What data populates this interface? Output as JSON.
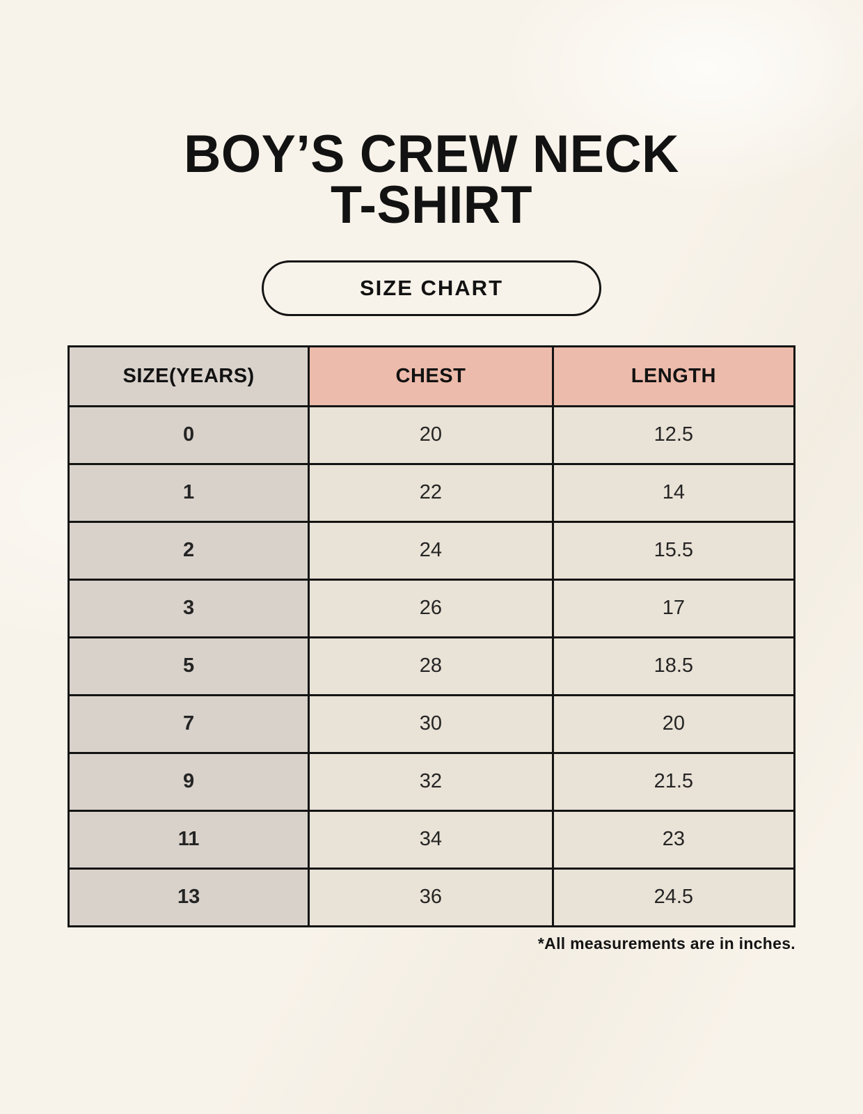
{
  "page": {
    "title_line1": "BOY’S CREW NECK",
    "title_line2": "T-SHIRT",
    "badge_label": "SIZE CHART",
    "footnote": "*All measurements are in inches."
  },
  "colors": {
    "background": "#f8f3ea",
    "header_accent_pink": "#edbbab",
    "size_column_taupe": "#d9d2cb",
    "value_cell_cream": "#e9e2d6",
    "border_black": "#141414",
    "text": "#1c1c1c"
  },
  "chart_data": {
    "type": "table",
    "title": "BOY’S CREW NECK T-SHIRT — SIZE CHART",
    "columns": [
      "SIZE(YEARS)",
      "CHEST",
      "LENGTH"
    ],
    "rows": [
      [
        "0",
        "20",
        "12.5"
      ],
      [
        "1",
        "22",
        "14"
      ],
      [
        "2",
        "24",
        "15.5"
      ],
      [
        "3",
        "26",
        "17"
      ],
      [
        "5",
        "28",
        "18.5"
      ],
      [
        "7",
        "30",
        "20"
      ],
      [
        "9",
        "32",
        "21.5"
      ],
      [
        "11",
        "34",
        "23"
      ],
      [
        "13",
        "36",
        "24.5"
      ]
    ],
    "units": "inches"
  },
  "table": {
    "headers": {
      "size": "SIZE(YEARS)",
      "chest": "CHEST",
      "length": "LENGTH"
    },
    "rows": [
      {
        "size": "0",
        "chest": "20",
        "length": "12.5"
      },
      {
        "size": "1",
        "chest": "22",
        "length": "14"
      },
      {
        "size": "2",
        "chest": "24",
        "length": "15.5"
      },
      {
        "size": "3",
        "chest": "26",
        "length": "17"
      },
      {
        "size": "5",
        "chest": "28",
        "length": "18.5"
      },
      {
        "size": "7",
        "chest": "30",
        "length": "20"
      },
      {
        "size": "9",
        "chest": "32",
        "length": "21.5"
      },
      {
        "size": "11",
        "chest": "34",
        "length": "23"
      },
      {
        "size": "13",
        "chest": "36",
        "length": "24.5"
      }
    ]
  }
}
